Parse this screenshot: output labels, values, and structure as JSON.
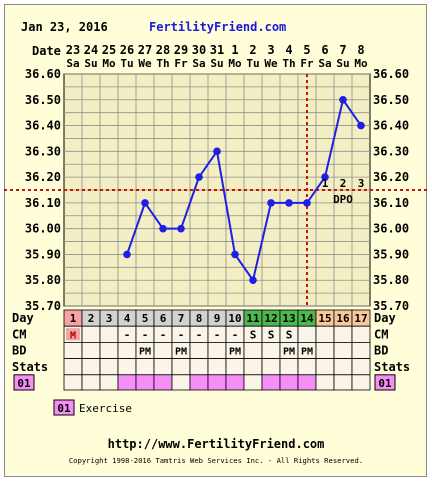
{
  "header": {
    "date": "Jan 23, 2016",
    "site": "FertilityFriend.com"
  },
  "row_labels": {
    "date": "Date",
    "day": "Day",
    "cm": "CM",
    "bd": "BD",
    "stats": "Stats"
  },
  "chart_data": {
    "type": "line",
    "x": [
      "23 Sa",
      "24 Su",
      "25 Mo",
      "26 Tu",
      "27 We",
      "28 Th",
      "29 Fr",
      "30 Sa",
      "31 Su",
      "1 Mo",
      "2 Tu",
      "3 We",
      "4 Th",
      "5 Fr",
      "6 Sa",
      "7 Su",
      "8 Mo"
    ],
    "dates": [
      "23",
      "24",
      "25",
      "26",
      "27",
      "28",
      "29",
      "30",
      "31",
      "1",
      "2",
      "3",
      "4",
      "5",
      "6",
      "7",
      "8"
    ],
    "weekdays": [
      "Sa",
      "Su",
      "Mo",
      "Tu",
      "We",
      "Th",
      "Fr",
      "Sa",
      "Su",
      "Mo",
      "Tu",
      "We",
      "Th",
      "Fr",
      "Sa",
      "Su",
      "Mo"
    ],
    "series": [
      {
        "values": [
          null,
          null,
          null,
          35.9,
          36.1,
          36.0,
          36.0,
          36.2,
          36.3,
          35.9,
          35.8,
          36.1,
          36.1,
          36.1,
          36.2,
          36.5,
          36.4
        ]
      }
    ],
    "ylim": [
      35.7,
      36.6
    ],
    "yticks": [
      "35.70",
      "35.80",
      "35.90",
      "36.00",
      "36.10",
      "36.20",
      "36.30",
      "36.40",
      "36.50",
      "36.60"
    ],
    "coverline": 36.15,
    "ovulation_day_index": 13,
    "dpo_numbers": [
      "1",
      "2",
      "3"
    ],
    "dpo_label": "DPO",
    "cycle_days": [
      "1",
      "2",
      "3",
      "4",
      "5",
      "6",
      "7",
      "8",
      "9",
      "10",
      "11",
      "12",
      "13",
      "14",
      "15",
      "16",
      "17"
    ],
    "day_highlight": [
      "menses",
      "none",
      "none",
      "none",
      "none",
      "none",
      "none",
      "none",
      "none",
      "none",
      "fertile",
      "fertile",
      "fertile",
      "fertile",
      "luteal",
      "luteal",
      "luteal"
    ],
    "menses_marker": "M",
    "cm": [
      "",
      "",
      "",
      "-",
      "-",
      "-",
      "-",
      "-",
      "-",
      "-",
      "S",
      "S",
      "S",
      "",
      "",
      "",
      ""
    ],
    "bd": [
      "",
      "",
      "",
      "",
      "PM",
      "",
      "PM",
      "",
      "",
      "PM",
      "",
      "",
      "PM",
      "PM",
      "",
      "",
      ""
    ],
    "stats_code": "01",
    "stats_marked": [
      false,
      false,
      false,
      true,
      true,
      true,
      false,
      true,
      true,
      true,
      false,
      true,
      true,
      true,
      false,
      false,
      false
    ],
    "grid": true,
    "colors": {
      "line": "#1f1fe6",
      "coverline": "#cc1111",
      "menses": "#f7a3a3",
      "fertile": "#4db84d",
      "luteal": "#f8c79a",
      "gray_day": "#d2d2d2",
      "stats": "#f58ef5"
    }
  },
  "legend": {
    "code": "01",
    "label": "Exercise"
  },
  "footer": {
    "url": "http://www.FertilityFriend.com",
    "copyright": "Copyright 1998-2016 Tamtris Web Services Inc. - All Rights Reserved."
  }
}
